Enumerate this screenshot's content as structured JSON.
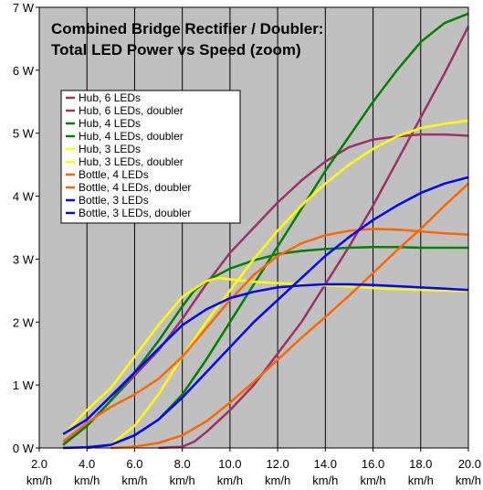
{
  "chart_data": {
    "type": "line",
    "title_lines": [
      "Combined Bridge Rectifier / Doubler:",
      "Total LED Power vs Speed (zoom)"
    ],
    "xlabel": "",
    "ylabel": "",
    "xlim": [
      2.0,
      20.0
    ],
    "ylim": [
      0,
      7
    ],
    "x_ticks": [
      {
        "value": 2,
        "label": "2.0",
        "unit": "km/h"
      },
      {
        "value": 4,
        "label": "4.0",
        "unit": "km/h"
      },
      {
        "value": 6,
        "label": "6.0",
        "unit": "km/h"
      },
      {
        "value": 8,
        "label": "8.0",
        "unit": "km/h"
      },
      {
        "value": 10,
        "label": "10.0",
        "unit": "km/h"
      },
      {
        "value": 12,
        "label": "12.0",
        "unit": "km/h"
      },
      {
        "value": 14,
        "label": "14.0",
        "unit": "km/h"
      },
      {
        "value": 16,
        "label": "16.0",
        "unit": "km/h"
      },
      {
        "value": 18,
        "label": "18.0",
        "unit": "km/h"
      },
      {
        "value": 20,
        "label": "20.0",
        "unit": "km/h"
      }
    ],
    "y_ticks": [
      {
        "value": 0,
        "label": "0 W"
      },
      {
        "value": 1,
        "label": "1 W"
      },
      {
        "value": 2,
        "label": "2 W"
      },
      {
        "value": 3,
        "label": "3 W"
      },
      {
        "value": 4,
        "label": "4 W"
      },
      {
        "value": 5,
        "label": "5 W"
      },
      {
        "value": 6,
        "label": "6 W"
      },
      {
        "value": 7,
        "label": "7 W"
      }
    ],
    "grid": "vertical",
    "legend_position": "top-left",
    "colors": {
      "plot_bg": "#c0c0c0",
      "grid": "#000000"
    },
    "series": [
      {
        "name": "Hub, 6 LEDs",
        "color": "#993366",
        "x": [
          3,
          4,
          5,
          6,
          7,
          8,
          9,
          10,
          11,
          12,
          13,
          14,
          15,
          16,
          17,
          18,
          19,
          20
        ],
        "y": [
          0.05,
          0.35,
          0.75,
          1.15,
          1.55,
          2.05,
          2.6,
          3.1,
          3.5,
          3.9,
          4.25,
          4.55,
          4.78,
          4.9,
          4.95,
          4.98,
          4.98,
          4.96
        ]
      },
      {
        "name": "Hub, 6 LEDs, doubler",
        "color": "#993366",
        "x": [
          7,
          8,
          8.5,
          9,
          10,
          11,
          12,
          13,
          14,
          15,
          16,
          17,
          18,
          19,
          20
        ],
        "y": [
          0,
          0.02,
          0.1,
          0.25,
          0.6,
          1.0,
          1.5,
          2.0,
          2.6,
          3.2,
          3.85,
          4.55,
          5.25,
          5.95,
          6.7
        ]
      },
      {
        "name": "Hub, 4 LEDs",
        "color": "#008000",
        "x": [
          3,
          4,
          5,
          6,
          7,
          8,
          8.5,
          9,
          10,
          11,
          12,
          13,
          14,
          15,
          16,
          17,
          18,
          19,
          20
        ],
        "y": [
          0.05,
          0.35,
          0.75,
          1.2,
          1.7,
          2.25,
          2.5,
          2.65,
          2.85,
          2.98,
          3.08,
          3.13,
          3.16,
          3.18,
          3.19,
          3.19,
          3.18,
          3.18,
          3.18
        ]
      },
      {
        "name": "Hub, 4 LEDs, doubler",
        "color": "#008000",
        "x": [
          4,
          5,
          6,
          7,
          8,
          9,
          10,
          11,
          12,
          13,
          14,
          15,
          16,
          17,
          18,
          19,
          20
        ],
        "y": [
          0,
          0.05,
          0.2,
          0.45,
          0.85,
          1.4,
          2.0,
          2.6,
          3.2,
          3.8,
          4.4,
          4.95,
          5.5,
          6.0,
          6.45,
          6.75,
          6.9
        ]
      },
      {
        "name": "Hub, 3 LEDs",
        "color": "#ffff00",
        "x": [
          3,
          4,
          5,
          6,
          7,
          8,
          9,
          9.5,
          10,
          11,
          12,
          13,
          14,
          15,
          16,
          17,
          18,
          19,
          20
        ],
        "y": [
          0.2,
          0.6,
          0.95,
          1.45,
          1.95,
          2.4,
          2.65,
          2.7,
          2.68,
          2.64,
          2.62,
          2.6,
          2.58,
          2.56,
          2.54,
          2.52,
          2.51,
          2.5,
          2.49
        ]
      },
      {
        "name": "Hub, 3 LEDs, doubler",
        "color": "#ffff00",
        "x": [
          5,
          6,
          7,
          8,
          9,
          10,
          11,
          12,
          13,
          14,
          15,
          16,
          17,
          18,
          19,
          20
        ],
        "y": [
          0.05,
          0.35,
          0.85,
          1.45,
          2.0,
          2.5,
          3.0,
          3.45,
          3.85,
          4.2,
          4.5,
          4.75,
          4.95,
          5.08,
          5.15,
          5.2
        ]
      },
      {
        "name": "Bottle, 4 LEDs",
        "color": "#ff6600",
        "x": [
          3,
          4,
          5,
          6,
          7,
          8,
          9,
          10,
          11,
          12,
          13,
          14,
          15,
          16,
          17,
          18,
          19,
          20
        ],
        "y": [
          0.1,
          0.4,
          0.65,
          0.85,
          1.1,
          1.45,
          1.9,
          2.35,
          2.75,
          3.05,
          3.25,
          3.38,
          3.45,
          3.48,
          3.47,
          3.44,
          3.41,
          3.39
        ]
      },
      {
        "name": "Bottle, 4 LEDs, doubler",
        "color": "#ff6600",
        "x": [
          5,
          6,
          7,
          8,
          9,
          10,
          11,
          12,
          13,
          14,
          15,
          16,
          17,
          18,
          19,
          20
        ],
        "y": [
          0,
          0.02,
          0.08,
          0.2,
          0.42,
          0.72,
          1.05,
          1.4,
          1.75,
          2.08,
          2.42,
          2.78,
          3.14,
          3.48,
          3.85,
          4.2
        ]
      },
      {
        "name": "Bottle, 3 LEDs",
        "color": "#0000ff",
        "x": [
          3,
          4,
          5,
          6,
          7,
          8,
          9,
          10,
          11,
          12,
          13,
          14,
          15,
          16,
          17,
          18,
          19,
          20
        ],
        "y": [
          0.22,
          0.45,
          0.82,
          1.2,
          1.58,
          1.95,
          2.2,
          2.38,
          2.48,
          2.55,
          2.58,
          2.6,
          2.6,
          2.59,
          2.57,
          2.55,
          2.53,
          2.51
        ]
      },
      {
        "name": "Bottle, 3 LEDs, doubler",
        "color": "#0000ff",
        "x": [
          3,
          4,
          5,
          6,
          7,
          8,
          9,
          10,
          11,
          12,
          13,
          14,
          15,
          16,
          17,
          18,
          19,
          20
        ],
        "y": [
          0,
          0.01,
          0.05,
          0.2,
          0.45,
          0.8,
          1.2,
          1.6,
          2.0,
          2.35,
          2.7,
          3.05,
          3.35,
          3.62,
          3.85,
          4.05,
          4.2,
          4.3
        ]
      }
    ]
  }
}
